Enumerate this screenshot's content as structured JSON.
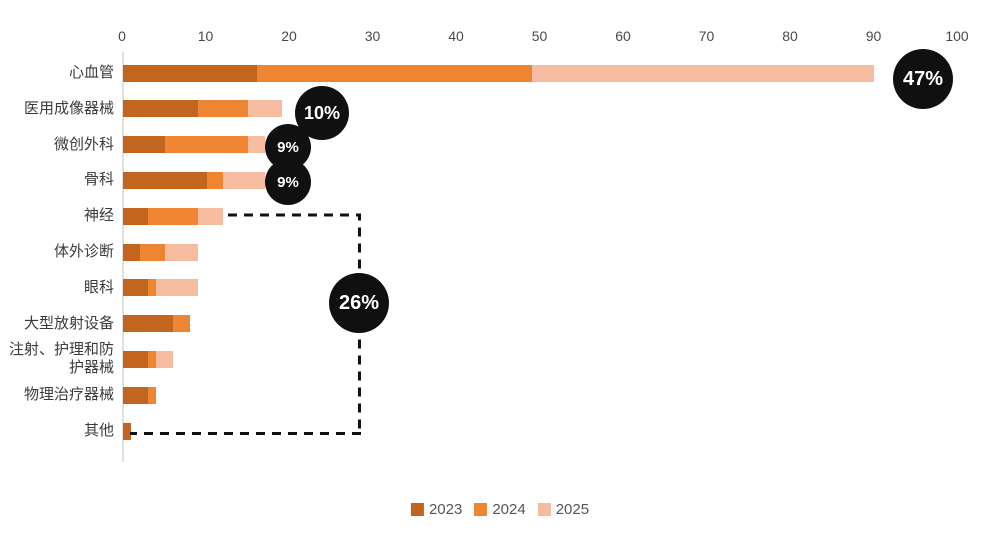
{
  "chart_data": {
    "type": "bar",
    "orientation": "horizontal",
    "stacked": true,
    "title": "",
    "xlabel": "",
    "ylabel": "",
    "xlim": [
      0,
      100
    ],
    "x_ticks": [
      0,
      10,
      20,
      30,
      40,
      50,
      60,
      70,
      80,
      90,
      100
    ],
    "grid": false,
    "legend_position": "bottom-center",
    "categories": [
      "心血管",
      "医用成像器械",
      "微创外科",
      "骨科",
      "神经",
      "体外诊断",
      "眼科",
      "大型放射设备",
      "注射、护理和防护器械",
      "物理治疗器械",
      "其他"
    ],
    "series": [
      {
        "name": "2023",
        "color": "#C2661F",
        "values": [
          16,
          9,
          5,
          10,
          3,
          2,
          3,
          6,
          3,
          3,
          1
        ]
      },
      {
        "name": "2024",
        "color": "#EE8533",
        "values": [
          33,
          6,
          10,
          2,
          6,
          3,
          1,
          2,
          1,
          1,
          0
        ]
      },
      {
        "name": "2025",
        "color": "#F5BCA0",
        "values": [
          41,
          4,
          2,
          5,
          3,
          4,
          5,
          0,
          2,
          0,
          0
        ]
      }
    ],
    "annotations": [
      {
        "label": "47%",
        "target": "心血管"
      },
      {
        "label": "10%",
        "target": "医用成像器械"
      },
      {
        "label": "9%",
        "target": "微创外科"
      },
      {
        "label": "9%",
        "target": "骨科"
      },
      {
        "label": "26%",
        "target": "神经 到 其他 (分组虚线框)"
      }
    ],
    "annotation_colors": {
      "badge_bg": "#101010",
      "badge_text": "#ffffff",
      "bracket": "#111111"
    }
  }
}
